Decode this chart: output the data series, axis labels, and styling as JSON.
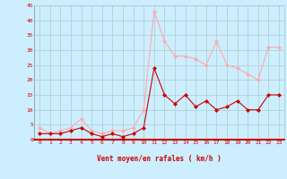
{
  "x": [
    0,
    1,
    2,
    3,
    4,
    5,
    6,
    7,
    8,
    9,
    10,
    11,
    12,
    13,
    14,
    15,
    16,
    17,
    18,
    19,
    20,
    21,
    22,
    23
  ],
  "y_mean": [
    2,
    2,
    2,
    3,
    4,
    2,
    1,
    2,
    1,
    2,
    4,
    24,
    15,
    12,
    15,
    11,
    13,
    10,
    11,
    13,
    10,
    10,
    15,
    15
  ],
  "y_gust": [
    4,
    2,
    3,
    4,
    7,
    3,
    2,
    3,
    3,
    4,
    10,
    43,
    33,
    28,
    28,
    27,
    25,
    33,
    25,
    24,
    22,
    20,
    31,
    31
  ],
  "line_color_mean": "#cc0000",
  "line_color_gust": "#ffaaaa",
  "bg_color": "#cceeff",
  "grid_color": "#aacccc",
  "xlabel": "Vent moyen/en rafales ( km/h )",
  "xlabel_color": "#cc0000",
  "tick_color": "#cc0000",
  "ylim": [
    0,
    45
  ],
  "yticks": [
    0,
    5,
    10,
    15,
    20,
    25,
    30,
    35,
    40,
    45
  ],
  "xlim": [
    -0.5,
    23.5
  ]
}
